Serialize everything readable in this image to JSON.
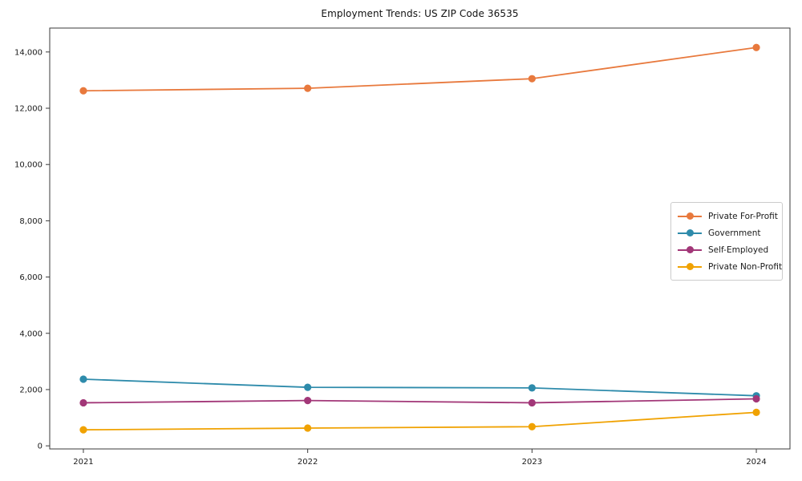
{
  "figure": {
    "background": "#ffffff"
  },
  "chart_data": {
    "type": "line",
    "title": "Employment Trends: US ZIP Code 36535",
    "x": [
      2021,
      2022,
      2023,
      2024
    ],
    "xticklabels": [
      "2021",
      "2022",
      "2023",
      "2024"
    ],
    "series": [
      {
        "name": "Private For-Profit",
        "color": "#e8793d",
        "values": [
          12620,
          12710,
          13050,
          14160
        ]
      },
      {
        "name": "Government",
        "color": "#2e8bab",
        "values": [
          2370,
          2080,
          2060,
          1780
        ]
      },
      {
        "name": "Self-Employed",
        "color": "#a23778",
        "values": [
          1530,
          1610,
          1530,
          1670
        ]
      },
      {
        "name": "Private Non-Profit",
        "color": "#f0a202",
        "values": [
          570,
          630,
          680,
          1190
        ]
      }
    ],
    "yticks": [
      0,
      2000,
      4000,
      6000,
      8000,
      10000,
      12000,
      14000
    ],
    "yticklabels": [
      "0",
      "2,000",
      "4,000",
      "6,000",
      "8,000",
      "10,000",
      "12,000",
      "14,000"
    ],
    "xlim": [
      2020.85,
      2024.15
    ],
    "ylim": [
      -110,
      14850
    ],
    "grid": false,
    "legend_position": "center-right",
    "marker": "circle",
    "axis_color": "#3a3a3a",
    "tick_color": "#3a3a3a",
    "text_color": "#1a1a1a",
    "legend_border_color": "#cccccc"
  }
}
